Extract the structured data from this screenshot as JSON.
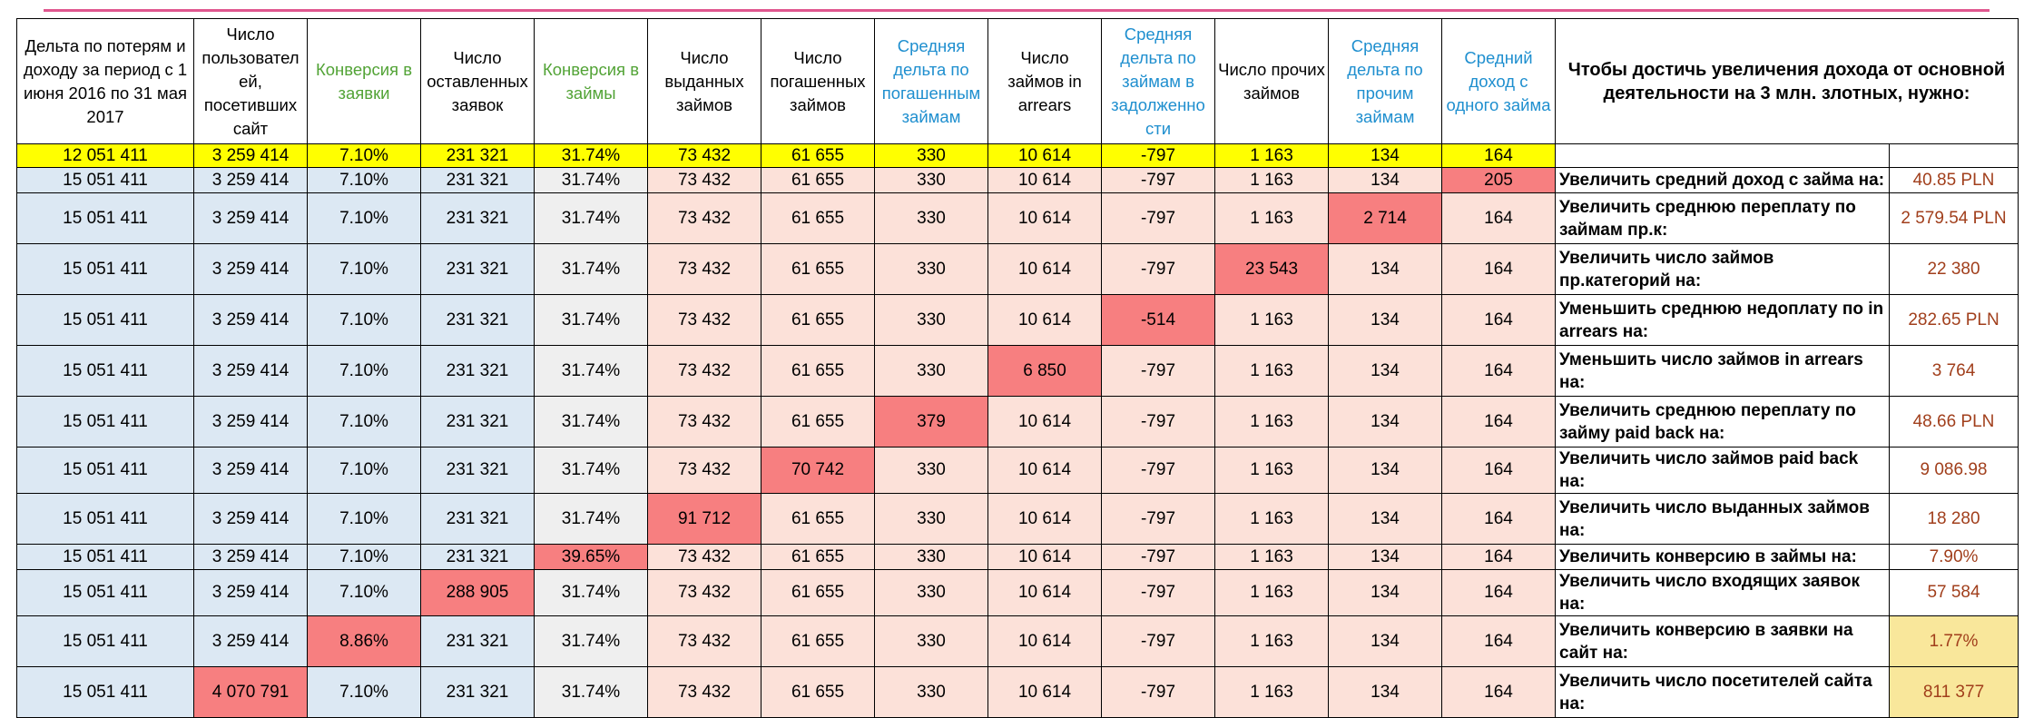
{
  "header": {
    "col1": "Дельта по потерям и доходу за период с 1 июня 2016 по 31 мая 2017",
    "col2": "Число пользовател ей, посетивших сайт",
    "col3": "Конверсия в заявки",
    "col4": "Число оставленных заявок",
    "col5": "Конверсия в займы",
    "col6": "Число выданных займов",
    "col7": "Число погашенных займов",
    "col8": "Средняя дельта по погашенным займам",
    "col9": "Число займов in arrears",
    "col10": "Средняя дельта по займам в задолженно сти",
    "col11": "Число прочих займов",
    "col12": "Средняя дельта по прочим займам",
    "col13": "Средний доход с одного займа",
    "goal": "Чтобы достичь увеличения дохода от основной деятельности на 3 млн. злотных, нужно:"
  },
  "rows": [
    {
      "cells": [
        "12 051 411",
        "3 259 414",
        "7.10%",
        "231 321",
        "31.74%",
        "73 432",
        "61 655",
        "330",
        "10 614",
        "-797",
        "1 163",
        "134",
        "164"
      ],
      "action": "",
      "req": ""
    },
    {
      "cells": [
        "15 051 411",
        "3 259 414",
        "7.10%",
        "231 321",
        "31.74%",
        "73 432",
        "61 655",
        "330",
        "10 614",
        "-797",
        "1 163",
        "134",
        "205"
      ],
      "action": "Увеличить средний доход с займа на:",
      "req": "40.85 PLN"
    },
    {
      "cells": [
        "15 051 411",
        "3 259 414",
        "7.10%",
        "231 321",
        "31.74%",
        "73 432",
        "61 655",
        "330",
        "10 614",
        "-797",
        "1 163",
        "2 714",
        "164"
      ],
      "action": "Увеличить среднюю переплату по займам пр.к:",
      "req": "2 579.54 PLN"
    },
    {
      "cells": [
        "15 051 411",
        "3 259 414",
        "7.10%",
        "231 321",
        "31.74%",
        "73 432",
        "61 655",
        "330",
        "10 614",
        "-797",
        "23 543",
        "134",
        "164"
      ],
      "action": "Увеличить число займов пр.категорий на:",
      "req": "22 380"
    },
    {
      "cells": [
        "15 051 411",
        "3 259 414",
        "7.10%",
        "231 321",
        "31.74%",
        "73 432",
        "61 655",
        "330",
        "10 614",
        "-514",
        "1 163",
        "134",
        "164"
      ],
      "action": "Уменьшить среднюю недоплату по in arrears на:",
      "req": "282.65 PLN"
    },
    {
      "cells": [
        "15 051 411",
        "3 259 414",
        "7.10%",
        "231 321",
        "31.74%",
        "73 432",
        "61 655",
        "330",
        "6 850",
        "-797",
        "1 163",
        "134",
        "164"
      ],
      "action": "Уменьшить число займов in arrears на:",
      "req": "3 764"
    },
    {
      "cells": [
        "15 051 411",
        "3 259 414",
        "7.10%",
        "231 321",
        "31.74%",
        "73 432",
        "61 655",
        "379",
        "10 614",
        "-797",
        "1 163",
        "134",
        "164"
      ],
      "action": "Увеличить среднюю переплату по займу paid back на:",
      "req": "48.66 PLN"
    },
    {
      "cells": [
        "15 051 411",
        "3 259 414",
        "7.10%",
        "231 321",
        "31.74%",
        "73 432",
        "70 742",
        "330",
        "10 614",
        "-797",
        "1 163",
        "134",
        "164"
      ],
      "action": "Увеличить число займов paid back на:",
      "req": "9 086.98"
    },
    {
      "cells": [
        "15 051 411",
        "3 259 414",
        "7.10%",
        "231 321",
        "31.74%",
        "91 712",
        "61 655",
        "330",
        "10 614",
        "-797",
        "1 163",
        "134",
        "164"
      ],
      "action": "Увеличить число выданных займов на:",
      "req": "18 280"
    },
    {
      "cells": [
        "15 051 411",
        "3 259 414",
        "7.10%",
        "231 321",
        "39.65%",
        "73 432",
        "61 655",
        "330",
        "10 614",
        "-797",
        "1 163",
        "134",
        "164"
      ],
      "action": "Увеличить конверсию в займы на:",
      "req": "7.90%"
    },
    {
      "cells": [
        "15 051 411",
        "3 259 414",
        "7.10%",
        "288 905",
        "31.74%",
        "73 432",
        "61 655",
        "330",
        "10 614",
        "-797",
        "1 163",
        "134",
        "164"
      ],
      "action": "Увеличить число входящих заявок на:",
      "req": "57 584"
    },
    {
      "cells": [
        "15 051 411",
        "3 259 414",
        "8.86%",
        "231 321",
        "31.74%",
        "73 432",
        "61 655",
        "330",
        "10 614",
        "-797",
        "1 163",
        "134",
        "164"
      ],
      "action": "Увеличить конверсию в заявки на сайт на:",
      "req": "1.77%"
    },
    {
      "cells": [
        "15 051 411",
        "4 070 791",
        "7.10%",
        "231 321",
        "31.74%",
        "73 432",
        "61 655",
        "330",
        "10 614",
        "-797",
        "1 163",
        "134",
        "164"
      ],
      "action": "Увеличить число посетителей сайта на:",
      "req": "811 377"
    }
  ],
  "highlights": {
    "changed_cell_color": "#f77f80",
    "baseline_row_color": "#ffff00",
    "visits_block_color": "#dce8f3",
    "conversion_block_color": "#efefef",
    "loans_block_color": "#fce1d9",
    "yellow_req_color": "#f9e79b"
  }
}
